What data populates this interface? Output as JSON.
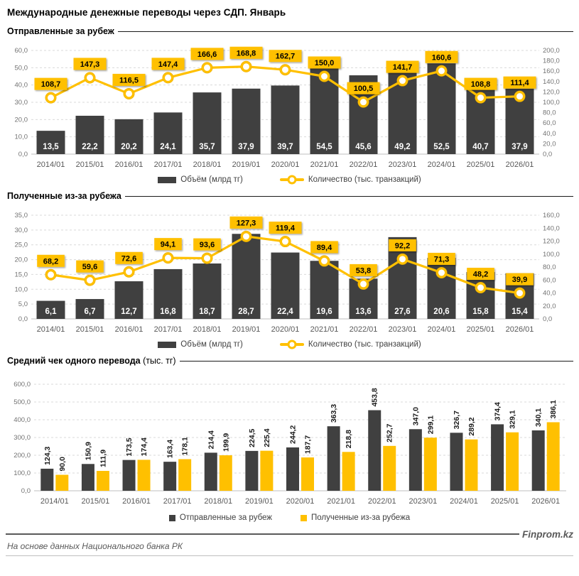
{
  "page": {
    "title": "Международные денежные переводы через СДП. Январь",
    "footer_note": "На основе данных Национального банка РК",
    "brand": "Finprom.kz"
  },
  "colors": {
    "bar_dark": "#404040",
    "accent_yellow": "#FFC000",
    "marker_ring": "#E8AC00",
    "grid": "#D9D9D9",
    "baseline": "#BFBFBF",
    "axis_text": "#737373",
    "category_text": "#595959",
    "bar_label_light": "#FFFFFF",
    "label_dark": "#1a1a1a"
  },
  "chart_data": [
    {
      "type": "bar",
      "subtype": "combo-bar-line",
      "title": "Отправленные за рубеж",
      "categories": [
        "2014/01",
        "2015/01",
        "2016/01",
        "2017/01",
        "2018/01",
        "2019/01",
        "2020/01",
        "2021/01",
        "2022/01",
        "2023/01",
        "2024/01",
        "2025/01",
        "2026/01"
      ],
      "series": [
        {
          "name": "Объём (млрд тг)",
          "type": "bar",
          "axis": "left",
          "values": [
            13.5,
            22.2,
            20.2,
            24.1,
            35.7,
            37.9,
            39.7,
            54.5,
            45.6,
            49.2,
            52.5,
            40.7,
            37.9
          ]
        },
        {
          "name": "Количество (тыс. транзакций)",
          "type": "line",
          "axis": "right",
          "values": [
            108.7,
            147.3,
            116.5,
            147.4,
            166.6,
            168.8,
            162.7,
            150.0,
            100.5,
            141.7,
            160.6,
            108.8,
            111.4
          ]
        }
      ],
      "left_axis": {
        "min": 0,
        "max": 60,
        "step": 10
      },
      "right_axis": {
        "min": 0,
        "max": 200,
        "step": 20
      },
      "grid": true,
      "legend_position": "bottom"
    },
    {
      "type": "bar",
      "subtype": "combo-bar-line",
      "title": "Полученные из-за рубежа",
      "categories": [
        "2014/01",
        "2015/01",
        "2016/01",
        "2017/01",
        "2018/01",
        "2019/01",
        "2020/01",
        "2021/01",
        "2022/01",
        "2023/01",
        "2024/01",
        "2025/01",
        "2026/01"
      ],
      "series": [
        {
          "name": "Объём (млрд тг)",
          "type": "bar",
          "axis": "left",
          "values": [
            6.1,
            6.7,
            12.7,
            16.8,
            18.7,
            28.7,
            22.4,
            19.6,
            13.6,
            27.6,
            20.6,
            15.8,
            15.4
          ]
        },
        {
          "name": "Количество (тыс. транзакций)",
          "type": "line",
          "axis": "right",
          "values": [
            68.2,
            59.6,
            72.6,
            94.1,
            93.6,
            127.3,
            119.4,
            89.4,
            53.8,
            92.2,
            71.3,
            48.2,
            39.9
          ]
        }
      ],
      "left_axis": {
        "min": 0,
        "max": 35,
        "step": 5
      },
      "right_axis": {
        "min": 0,
        "max": 160,
        "step": 20
      },
      "grid": true,
      "legend_position": "bottom"
    },
    {
      "type": "bar",
      "subtype": "grouped-bar",
      "title": "Средний чек одного перевода",
      "title_suffix": " (тыс. тг)",
      "categories": [
        "2014/01",
        "2015/01",
        "2016/01",
        "2017/01",
        "2018/01",
        "2019/01",
        "2020/01",
        "2021/01",
        "2022/01",
        "2023/01",
        "2024/01",
        "2025/01",
        "2026/01"
      ],
      "series": [
        {
          "name": "Отправленные за рубеж",
          "type": "bar",
          "axis": "left",
          "values": [
            124.3,
            150.9,
            173.5,
            163.4,
            214.4,
            224.5,
            244.2,
            363.3,
            453.8,
            347.0,
            326.7,
            374.4,
            340.1
          ]
        },
        {
          "name": "Полученные из-за рубежа",
          "type": "bar",
          "axis": "left",
          "values": [
            90.0,
            111.9,
            174.4,
            178.1,
            199.9,
            225.4,
            187.7,
            218.8,
            252.7,
            299.1,
            289.2,
            329.1,
            386.1
          ]
        }
      ],
      "left_axis": {
        "min": 0,
        "max": 600,
        "step": 100
      },
      "grid": true,
      "legend_position": "bottom"
    }
  ]
}
